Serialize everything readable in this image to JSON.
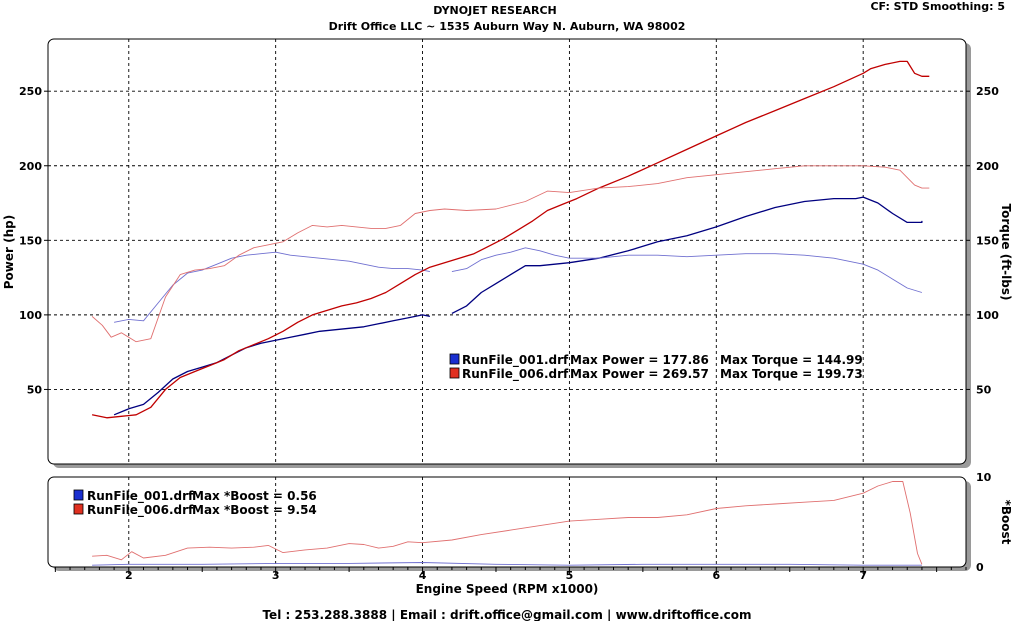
{
  "header": {
    "title": "DYNOJET RESEARCH",
    "subtitle": "Drift Office LLC ~ 1535 Auburn Way N. Auburn, WA 98002",
    "settings": "CF: STD  Smoothing: 5"
  },
  "footer": "Tel : 253.288.3888 | Email : drift.office@gmail.com | www.driftoffice.com",
  "colors": {
    "run001_power": "#000080",
    "run001_torque": "#7070d0",
    "run006_power": "#c00000",
    "run006_torque": "#e07070",
    "grid": "#000000",
    "background": "#ffffff"
  },
  "chart_data": [
    {
      "type": "line",
      "xlabel": "Engine Speed (RPM x1000)",
      "ylabel": "Power (hp)",
      "y2label": "Torque (ft-lbs)",
      "xlim": [
        1.45,
        7.7
      ],
      "ylim": [
        0,
        285
      ],
      "y2lim": [
        0,
        285
      ],
      "xticks": [
        2,
        3,
        4,
        5,
        6,
        7
      ],
      "yticks": [
        50,
        100,
        150,
        200,
        250
      ],
      "grid": true,
      "legend": [
        {
          "file": "RunFile_001.drf",
          "power_label": "Max Power = 177.86",
          "torque_label": "Max Torque = 144.99"
        },
        {
          "file": "RunFile_006.drf",
          "power_label": "Max Power = 269.57",
          "torque_label": "Max Torque = 199.73"
        }
      ],
      "series": [
        {
          "name": "RunFile_001.drf Power",
          "axis": "left",
          "colorKey": "run001_power",
          "width": 1.3,
          "points": [
            [
              1.9,
              33
            ],
            [
              2.0,
              37
            ],
            [
              2.1,
              40
            ],
            [
              2.2,
              48
            ],
            [
              2.3,
              57
            ],
            [
              2.4,
              62
            ],
            [
              2.5,
              65
            ],
            [
              2.6,
              68
            ],
            [
              2.7,
              73
            ],
            [
              2.8,
              78
            ],
            [
              2.9,
              81
            ],
            [
              3.0,
              83
            ],
            [
              3.1,
              85
            ],
            [
              3.2,
              87
            ],
            [
              3.3,
              89
            ],
            [
              3.4,
              90
            ],
            [
              3.5,
              91
            ],
            [
              3.6,
              92
            ],
            [
              3.7,
              94
            ],
            [
              3.8,
              96
            ],
            [
              3.9,
              98
            ],
            [
              4.0,
              100
            ],
            [
              4.05,
              99
            ],
            null,
            [
              4.2,
              101
            ],
            [
              4.3,
              106
            ],
            [
              4.4,
              115
            ],
            [
              4.5,
              121
            ],
            [
              4.6,
              127
            ],
            [
              4.7,
              133
            ],
            [
              4.8,
              133
            ],
            [
              4.9,
              134
            ],
            [
              5.0,
              135
            ],
            [
              5.2,
              138
            ],
            [
              5.4,
              143
            ],
            [
              5.6,
              149
            ],
            [
              5.8,
              153
            ],
            [
              6.0,
              159
            ],
            [
              6.2,
              166
            ],
            [
              6.4,
              172
            ],
            [
              6.6,
              176
            ],
            [
              6.8,
              178
            ],
            [
              6.95,
              178
            ],
            [
              7.0,
              179
            ],
            [
              7.1,
              175
            ],
            [
              7.2,
              168
            ],
            [
              7.3,
              162
            ],
            [
              7.4,
              162
            ],
            [
              7.4,
              163
            ]
          ]
        },
        {
          "name": "RunFile_001.drf Torque",
          "axis": "right",
          "colorKey": "run001_torque",
          "width": 0.9,
          "points": [
            [
              1.9,
              95
            ],
            [
              2.0,
              97
            ],
            [
              2.1,
              96
            ],
            [
              2.2,
              108
            ],
            [
              2.3,
              120
            ],
            [
              2.4,
              128
            ],
            [
              2.5,
              130
            ],
            [
              2.6,
              134
            ],
            [
              2.7,
              138
            ],
            [
              2.8,
              140
            ],
            [
              2.9,
              141
            ],
            [
              3.0,
              142
            ],
            [
              3.1,
              140
            ],
            [
              3.2,
              139
            ],
            [
              3.3,
              138
            ],
            [
              3.4,
              137
            ],
            [
              3.5,
              136
            ],
            [
              3.6,
              134
            ],
            [
              3.7,
              132
            ],
            [
              3.8,
              131
            ],
            [
              3.9,
              131
            ],
            [
              4.0,
              130
            ],
            [
              4.05,
              129
            ],
            null,
            [
              4.2,
              129
            ],
            [
              4.3,
              131
            ],
            [
              4.4,
              137
            ],
            [
              4.5,
              140
            ],
            [
              4.6,
              142
            ],
            [
              4.7,
              145
            ],
            [
              4.8,
              143
            ],
            [
              4.9,
              140
            ],
            [
              5.0,
              138
            ],
            [
              5.2,
              138
            ],
            [
              5.4,
              140
            ],
            [
              5.6,
              140
            ],
            [
              5.8,
              139
            ],
            [
              6.0,
              140
            ],
            [
              6.2,
              141
            ],
            [
              6.4,
              141
            ],
            [
              6.6,
              140
            ],
            [
              6.8,
              138
            ],
            [
              7.0,
              134
            ],
            [
              7.1,
              130
            ],
            [
              7.2,
              124
            ],
            [
              7.3,
              118
            ],
            [
              7.4,
              115
            ],
            [
              7.4,
              115
            ]
          ]
        },
        {
          "name": "RunFile_006.drf Power",
          "axis": "left",
          "colorKey": "run006_power",
          "width": 1.3,
          "points": [
            [
              1.75,
              33
            ],
            [
              1.85,
              31
            ],
            [
              1.95,
              32
            ],
            [
              2.05,
              33
            ],
            [
              2.15,
              38
            ],
            [
              2.25,
              50
            ],
            [
              2.35,
              58
            ],
            [
              2.45,
              62
            ],
            [
              2.55,
              66
            ],
            [
              2.65,
              70
            ],
            [
              2.75,
              76
            ],
            [
              2.85,
              80
            ],
            [
              2.95,
              84
            ],
            [
              3.05,
              89
            ],
            [
              3.15,
              95
            ],
            [
              3.25,
              100
            ],
            [
              3.35,
              103
            ],
            [
              3.45,
              106
            ],
            [
              3.55,
              108
            ],
            [
              3.65,
              111
            ],
            [
              3.75,
              115
            ],
            [
              3.85,
              121
            ],
            [
              3.95,
              127
            ],
            [
              4.05,
              132
            ],
            [
              4.15,
              135
            ],
            [
              4.25,
              138
            ],
            [
              4.35,
              141
            ],
            [
              4.45,
              146
            ],
            [
              4.55,
              151
            ],
            [
              4.65,
              157
            ],
            [
              4.75,
              163
            ],
            [
              4.85,
              170
            ],
            [
              4.95,
              174
            ],
            [
              5.05,
              178
            ],
            [
              5.2,
              185
            ],
            [
              5.4,
              193
            ],
            [
              5.6,
              202
            ],
            [
              5.8,
              211
            ],
            [
              6.0,
              220
            ],
            [
              6.2,
              229
            ],
            [
              6.4,
              237
            ],
            [
              6.6,
              245
            ],
            [
              6.8,
              253
            ],
            [
              7.0,
              262
            ],
            [
              7.05,
              265
            ],
            [
              7.15,
              268
            ],
            [
              7.25,
              270
            ],
            [
              7.3,
              270
            ],
            [
              7.35,
              262
            ],
            [
              7.4,
              260
            ],
            [
              7.45,
              260
            ]
          ]
        },
        {
          "name": "RunFile_006.drf Torque",
          "axis": "right",
          "colorKey": "run006_torque",
          "width": 0.9,
          "points": [
            [
              1.75,
              99
            ],
            [
              1.82,
              93
            ],
            [
              1.88,
              85
            ],
            [
              1.95,
              88
            ],
            [
              2.05,
              82
            ],
            [
              2.15,
              84
            ],
            [
              2.25,
              112
            ],
            [
              2.35,
              127
            ],
            [
              2.45,
              130
            ],
            [
              2.55,
              131
            ],
            [
              2.65,
              133
            ],
            [
              2.75,
              140
            ],
            [
              2.85,
              145
            ],
            [
              2.95,
              147
            ],
            [
              3.05,
              149
            ],
            [
              3.15,
              155
            ],
            [
              3.25,
              160
            ],
            [
              3.35,
              159
            ],
            [
              3.45,
              160
            ],
            [
              3.55,
              159
            ],
            [
              3.65,
              158
            ],
            [
              3.75,
              158
            ],
            [
              3.85,
              160
            ],
            [
              3.95,
              168
            ],
            [
              4.05,
              170
            ],
            [
              4.15,
              171
            ],
            [
              4.3,
              170
            ],
            [
              4.5,
              171
            ],
            [
              4.7,
              176
            ],
            [
              4.85,
              183
            ],
            [
              5.0,
              182
            ],
            [
              5.2,
              185
            ],
            [
              5.4,
              186
            ],
            [
              5.6,
              188
            ],
            [
              5.8,
              192
            ],
            [
              6.0,
              194
            ],
            [
              6.2,
              196
            ],
            [
              6.4,
              198
            ],
            [
              6.6,
              200
            ],
            [
              6.8,
              200
            ],
            [
              7.0,
              200
            ],
            [
              7.15,
              199
            ],
            [
              7.25,
              197
            ],
            [
              7.35,
              187
            ],
            [
              7.4,
              185
            ],
            [
              7.45,
              185
            ]
          ]
        }
      ]
    },
    {
      "type": "line",
      "xlabel": "",
      "ylabel": "*Boost",
      "ylabel_side": "right",
      "xlim": [
        1.45,
        7.7
      ],
      "ylim": [
        0,
        10
      ],
      "yticks": [
        0,
        10
      ],
      "xticks": [
        2,
        3,
        4,
        5,
        6,
        7
      ],
      "grid": true,
      "legend": [
        {
          "file": "RunFile_001.drf",
          "label": "Max *Boost = 0.56"
        },
        {
          "file": "RunFile_006.drf",
          "label": "Max *Boost = 9.54"
        }
      ],
      "series": [
        {
          "name": "RunFile_001.drf *Boost",
          "colorKey": "run001_torque",
          "width": 0.9,
          "points": [
            [
              1.75,
              0.2
            ],
            [
              2.0,
              0.3
            ],
            [
              2.5,
              0.3
            ],
            [
              3.0,
              0.4
            ],
            [
              3.5,
              0.4
            ],
            [
              4.0,
              0.5
            ],
            [
              4.5,
              0.3
            ],
            [
              5.0,
              0.2
            ],
            [
              5.5,
              0.3
            ],
            [
              6.0,
              0.3
            ],
            [
              6.5,
              0.3
            ],
            [
              7.0,
              0.2
            ],
            [
              7.4,
              0.2
            ]
          ]
        },
        {
          "name": "RunFile_006.drf *Boost",
          "colorKey": "run006_torque",
          "width": 0.9,
          "points": [
            [
              1.75,
              1.2
            ],
            [
              1.85,
              1.3
            ],
            [
              1.95,
              0.8
            ],
            [
              2.02,
              1.7
            ],
            [
              2.1,
              1.0
            ],
            [
              2.25,
              1.3
            ],
            [
              2.4,
              2.1
            ],
            [
              2.55,
              2.2
            ],
            [
              2.7,
              2.1
            ],
            [
              2.85,
              2.2
            ],
            [
              2.95,
              2.4
            ],
            [
              3.05,
              1.6
            ],
            [
              3.2,
              1.9
            ],
            [
              3.35,
              2.1
            ],
            [
              3.5,
              2.6
            ],
            [
              3.6,
              2.5
            ],
            [
              3.7,
              2.1
            ],
            [
              3.8,
              2.3
            ],
            [
              3.9,
              2.8
            ],
            [
              4.0,
              2.7
            ],
            [
              4.2,
              3.0
            ],
            [
              4.4,
              3.6
            ],
            [
              4.6,
              4.1
            ],
            [
              4.8,
              4.6
            ],
            [
              5.0,
              5.1
            ],
            [
              5.2,
              5.3
            ],
            [
              5.4,
              5.5
            ],
            [
              5.6,
              5.5
            ],
            [
              5.8,
              5.8
            ],
            [
              6.0,
              6.5
            ],
            [
              6.2,
              6.8
            ],
            [
              6.4,
              7.0
            ],
            [
              6.6,
              7.2
            ],
            [
              6.8,
              7.4
            ],
            [
              7.0,
              8.2
            ],
            [
              7.1,
              9.0
            ],
            [
              7.2,
              9.5
            ],
            [
              7.27,
              9.5
            ],
            [
              7.32,
              6.0
            ],
            [
              7.37,
              1.5
            ],
            [
              7.4,
              0.3
            ]
          ]
        }
      ]
    }
  ]
}
